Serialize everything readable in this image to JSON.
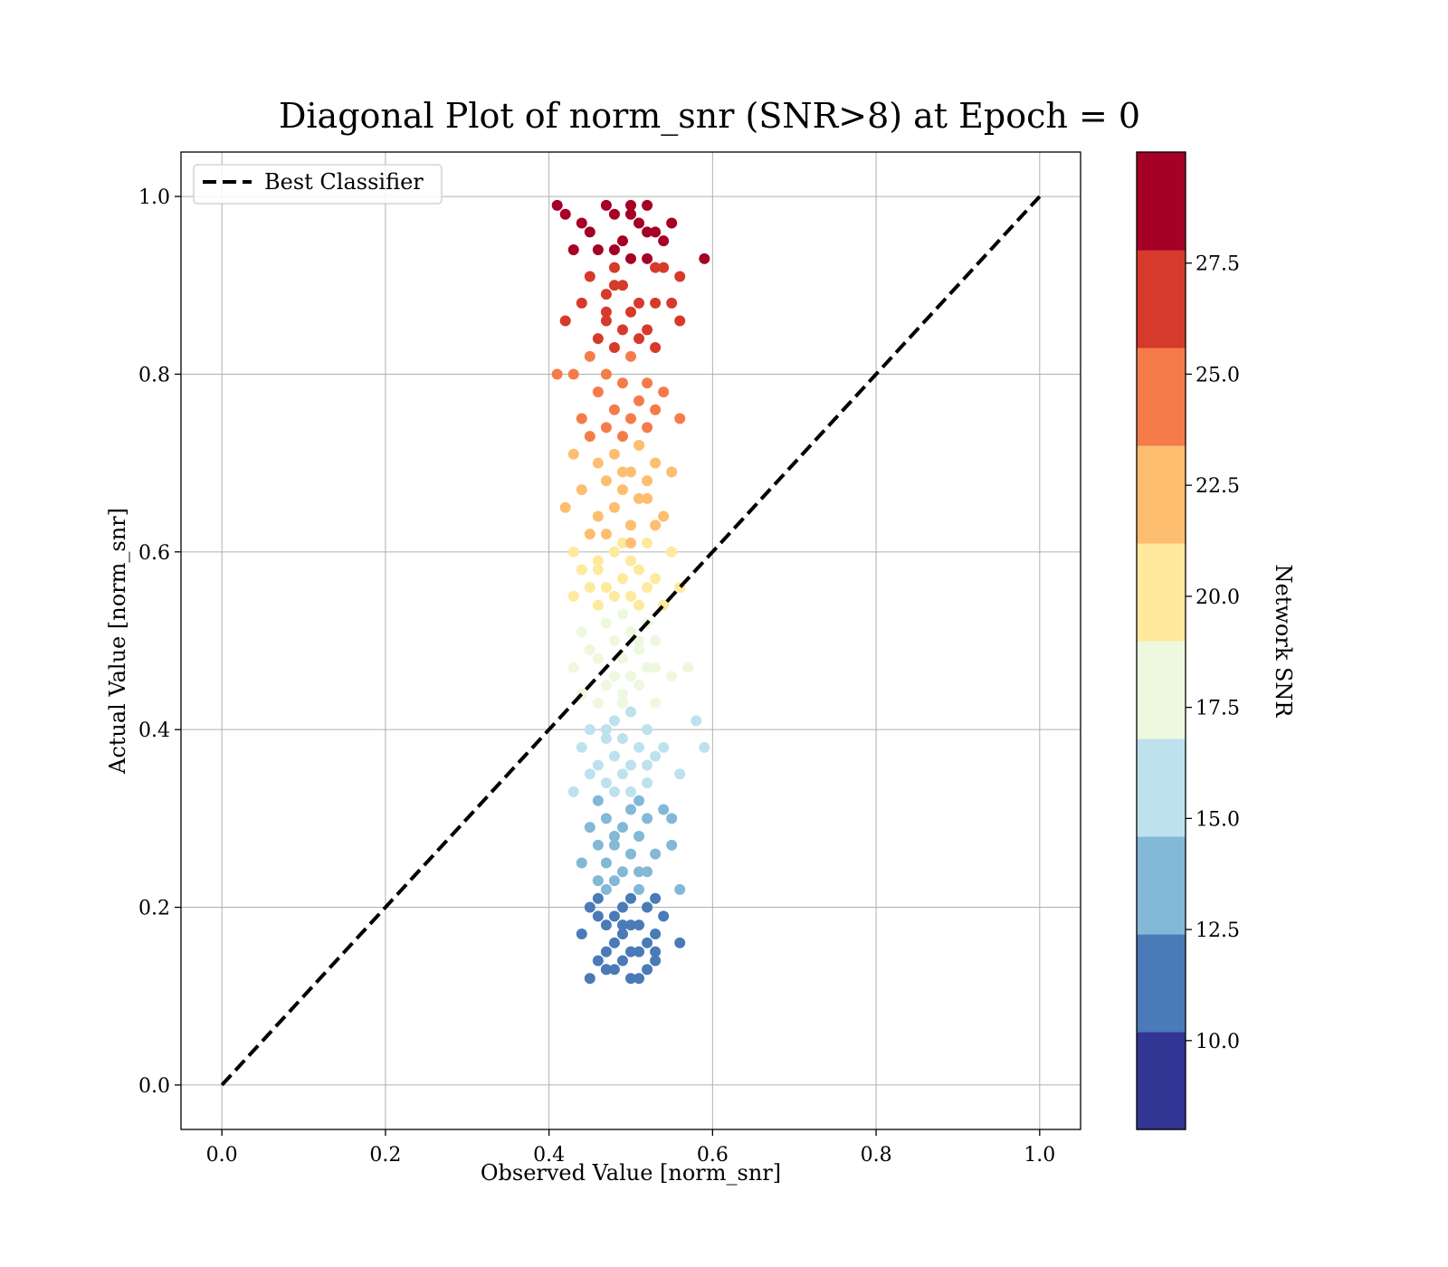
{
  "chart_data": {
    "type": "scatter",
    "title": "Diagonal Plot of norm_snr (SNR>8) at Epoch = 0",
    "xlabel": "Observed Value [norm_snr]",
    "ylabel": "Actual Value [norm_snr]",
    "xlim": [
      -0.05,
      1.05
    ],
    "ylim": [
      -0.05,
      1.05
    ],
    "xticks": [
      "0.0",
      "0.2",
      "0.4",
      "0.6",
      "0.8",
      "1.0"
    ],
    "yticks": [
      "0.0",
      "0.2",
      "0.4",
      "0.6",
      "0.8",
      "1.0"
    ],
    "grid": true,
    "legend": {
      "position": "top-left",
      "entries": [
        "Best Classifier"
      ]
    },
    "reference_line": {
      "name": "Best Classifier",
      "x": [
        0.0,
        1.0
      ],
      "y": [
        0.0,
        1.0
      ],
      "style": "dashed",
      "color": "#000000"
    },
    "colorbar": {
      "label": "Network SNR",
      "range": [
        8,
        30
      ],
      "ticks": [
        "10.0",
        "12.5",
        "15.0",
        "17.5",
        "20.0",
        "22.5",
        "25.0",
        "27.5"
      ],
      "colors": [
        "#313695",
        "#4a7ab7",
        "#83b8d7",
        "#bde2ee",
        "#eef8df",
        "#fee99d",
        "#fdbe70",
        "#f57c4a",
        "#d63a2a",
        "#a50026"
      ]
    },
    "x": [
      0.41,
      0.42,
      0.44,
      0.45,
      0.47,
      0.48,
      0.49,
      0.5,
      0.51,
      0.52,
      0.53,
      0.55,
      0.46,
      0.5,
      0.54,
      0.59,
      0.43,
      0.48,
      0.52,
      0.56,
      0.45,
      0.49,
      0.53,
      0.47,
      0.51,
      0.44,
      0.5,
      0.55,
      0.42,
      0.47,
      0.52,
      0.49,
      0.46,
      0.51,
      0.56,
      0.48,
      0.53,
      0.45,
      0.5,
      0.43,
      0.47,
      0.52,
      0.49,
      0.54,
      0.46,
      0.51,
      0.41,
      0.48,
      0.53,
      0.5,
      0.44,
      0.47,
      0.52,
      0.45,
      0.49,
      0.56,
      0.51,
      0.48,
      0.43,
      0.53,
      0.46,
      0.5,
      0.55,
      0.47,
      0.52,
      0.44,
      0.49,
      0.51,
      0.42,
      0.48,
      0.54,
      0.46,
      0.5,
      0.53,
      0.47,
      0.45,
      0.49,
      0.52,
      0.43,
      0.48,
      0.55,
      0.5,
      0.46,
      0.51,
      0.44,
      0.49,
      0.53,
      0.47,
      0.52,
      0.45,
      0.5,
      0.56,
      0.48,
      0.43,
      0.51,
      0.46,
      0.54,
      0.49,
      0.47,
      0.52,
      0.44,
      0.5,
      0.48,
      0.53,
      0.45,
      0.51,
      0.57,
      0.49,
      0.46,
      0.52,
      0.43,
      0.48,
      0.5,
      0.55,
      0.47,
      0.51,
      0.44,
      0.49,
      0.53,
      0.46,
      0.5,
      0.58,
      0.48,
      0.45,
      0.52,
      0.49,
      0.47,
      0.54,
      0.51,
      0.44,
      0.48,
      0.53,
      0.46,
      0.5,
      0.45,
      0.49,
      0.56,
      0.47,
      0.52,
      0.43,
      0.48,
      0.51,
      0.46,
      0.54,
      0.5,
      0.47,
      0.52,
      0.59,
      0.49,
      0.45,
      0.51,
      0.48,
      0.55,
      0.46,
      0.5,
      0.53,
      0.47,
      0.44,
      0.49,
      0.52,
      0.48,
      0.46,
      0.51,
      0.56,
      0.47,
      0.53,
      0.5,
      0.45,
      0.49,
      0.52,
      0.48,
      0.54,
      0.46,
      0.51,
      0.47,
      0.5,
      0.53,
      0.49,
      0.44,
      0.52,
      0.48,
      0.56,
      0.47,
      0.51,
      0.5,
      0.46,
      0.53,
      0.49,
      0.48,
      0.52,
      0.47,
      0.51,
      0.45,
      0.5,
      0.54,
      0.48,
      0.53,
      0.47,
      0.51,
      0.49,
      0.52,
      0.5,
      0.46,
      0.48,
      0.51,
      0.53,
      0.49,
      0.47,
      0.52,
      0.5,
      0.55,
      0.48,
      0.51,
      0.46,
      0.49,
      0.53,
      0.47,
      0.5,
      0.52,
      0.48
    ],
    "y": [
      0.99,
      0.98,
      0.97,
      0.96,
      0.99,
      0.98,
      0.95,
      0.99,
      0.97,
      0.99,
      0.96,
      0.97,
      0.94,
      0.93,
      0.95,
      0.93,
      0.94,
      0.92,
      0.93,
      0.91,
      0.91,
      0.9,
      0.92,
      0.89,
      0.88,
      0.88,
      0.87,
      0.88,
      0.86,
      0.86,
      0.85,
      0.85,
      0.84,
      0.84,
      0.86,
      0.83,
      0.83,
      0.82,
      0.82,
      0.8,
      0.8,
      0.79,
      0.79,
      0.78,
      0.78,
      0.77,
      0.8,
      0.76,
      0.76,
      0.75,
      0.75,
      0.74,
      0.74,
      0.73,
      0.73,
      0.75,
      0.72,
      0.71,
      0.71,
      0.7,
      0.7,
      0.69,
      0.69,
      0.68,
      0.68,
      0.67,
      0.67,
      0.66,
      0.65,
      0.65,
      0.64,
      0.64,
      0.63,
      0.63,
      0.62,
      0.62,
      0.61,
      0.61,
      0.6,
      0.6,
      0.6,
      0.59,
      0.59,
      0.58,
      0.58,
      0.57,
      0.57,
      0.56,
      0.56,
      0.56,
      0.55,
      0.56,
      0.55,
      0.55,
      0.54,
      0.54,
      0.54,
      0.53,
      0.52,
      0.52,
      0.51,
      0.51,
      0.5,
      0.5,
      0.49,
      0.49,
      0.47,
      0.48,
      0.48,
      0.47,
      0.47,
      0.46,
      0.46,
      0.46,
      0.45,
      0.45,
      0.44,
      0.44,
      0.43,
      0.43,
      0.42,
      0.41,
      0.41,
      0.4,
      0.4,
      0.39,
      0.39,
      0.38,
      0.38,
      0.38,
      0.37,
      0.37,
      0.36,
      0.36,
      0.35,
      0.35,
      0.35,
      0.34,
      0.34,
      0.33,
      0.33,
      0.32,
      0.32,
      0.31,
      0.31,
      0.3,
      0.3,
      0.38,
      0.29,
      0.29,
      0.28,
      0.28,
      0.27,
      0.27,
      0.26,
      0.26,
      0.25,
      0.25,
      0.24,
      0.24,
      0.23,
      0.23,
      0.22,
      0.22,
      0.22,
      0.21,
      0.21,
      0.2,
      0.2,
      0.2,
      0.19,
      0.19,
      0.19,
      0.18,
      0.18,
      0.18,
      0.17,
      0.17,
      0.17,
      0.16,
      0.16,
      0.16,
      0.15,
      0.15,
      0.15,
      0.14,
      0.14,
      0.14,
      0.13,
      0.13,
      0.13,
      0.12,
      0.12,
      0.12,
      0.92,
      0.9,
      0.88,
      0.87,
      0.72,
      0.69,
      0.66,
      0.61,
      0.58,
      0.55,
      0.5,
      0.47,
      0.43,
      0.4,
      0.36,
      0.33,
      0.3,
      0.27,
      0.24,
      0.21,
      0.18,
      0.15,
      0.13,
      0.98,
      0.96,
      0.94
    ],
    "snr": [
      28.8,
      28.6,
      28.5,
      28.3,
      28.9,
      28.7,
      28.2,
      29.0,
      28.6,
      29.1,
      28.3,
      28.5,
      28.0,
      27.8,
      28.1,
      27.8,
      28.0,
      27.6,
      27.8,
      27.4,
      27.3,
      27.1,
      27.5,
      26.8,
      26.6,
      26.6,
      26.4,
      26.6,
      26.2,
      26.2,
      26.0,
      26.0,
      25.8,
      25.8,
      26.2,
      25.6,
      25.6,
      25.3,
      25.3,
      24.9,
      24.9,
      24.8,
      24.8,
      24.6,
      24.6,
      24.4,
      24.9,
      24.2,
      24.2,
      24.0,
      24.0,
      23.8,
      23.8,
      23.5,
      23.5,
      24.0,
      23.3,
      23.1,
      23.1,
      22.9,
      22.9,
      22.7,
      22.7,
      22.5,
      22.5,
      22.3,
      22.3,
      22.1,
      21.9,
      21.9,
      21.7,
      21.7,
      21.5,
      21.5,
      21.2,
      21.2,
      21.0,
      21.0,
      20.8,
      20.8,
      20.8,
      20.6,
      20.6,
      20.4,
      20.4,
      20.2,
      20.2,
      20.0,
      20.0,
      20.0,
      19.3,
      20.0,
      19.3,
      19.3,
      19.1,
      19.1,
      19.1,
      18.9,
      18.7,
      18.7,
      18.5,
      18.5,
      18.3,
      18.3,
      18.1,
      18.1,
      17.6,
      17.9,
      17.9,
      17.6,
      17.6,
      17.4,
      17.4,
      17.4,
      17.2,
      17.2,
      17.0,
      17.0,
      16.8,
      16.8,
      16.6,
      16.4,
      16.4,
      16.2,
      16.2,
      16.0,
      16.0,
      15.7,
      15.7,
      15.7,
      15.5,
      15.5,
      15.3,
      15.3,
      15.1,
      15.1,
      15.1,
      14.9,
      14.9,
      14.7,
      14.7,
      14.5,
      14.5,
      14.3,
      14.3,
      14.1,
      14.1,
      15.7,
      13.8,
      13.8,
      13.6,
      13.6,
      13.4,
      13.4,
      13.2,
      13.2,
      13.0,
      13.0,
      12.8,
      12.8,
      12.6,
      12.6,
      12.4,
      12.4,
      12.4,
      12.2,
      12.2,
      11.9,
      11.9,
      11.9,
      11.7,
      11.7,
      11.7,
      11.5,
      11.5,
      11.5,
      11.3,
      11.3,
      11.3,
      11.1,
      11.1,
      11.1,
      10.9,
      10.9,
      10.9,
      10.7,
      10.7,
      10.7,
      10.5,
      10.5,
      10.5,
      10.3,
      10.3,
      10.3,
      27.6,
      27.1,
      26.6,
      26.4,
      23.3,
      22.7,
      22.1,
      21.2,
      20.6,
      19.3,
      18.3,
      17.6,
      16.8,
      16.2,
      15.3,
      14.7,
      14.1,
      13.4,
      12.8,
      12.2,
      11.5,
      10.9,
      10.5,
      28.7,
      28.3,
      28.0
    ]
  }
}
